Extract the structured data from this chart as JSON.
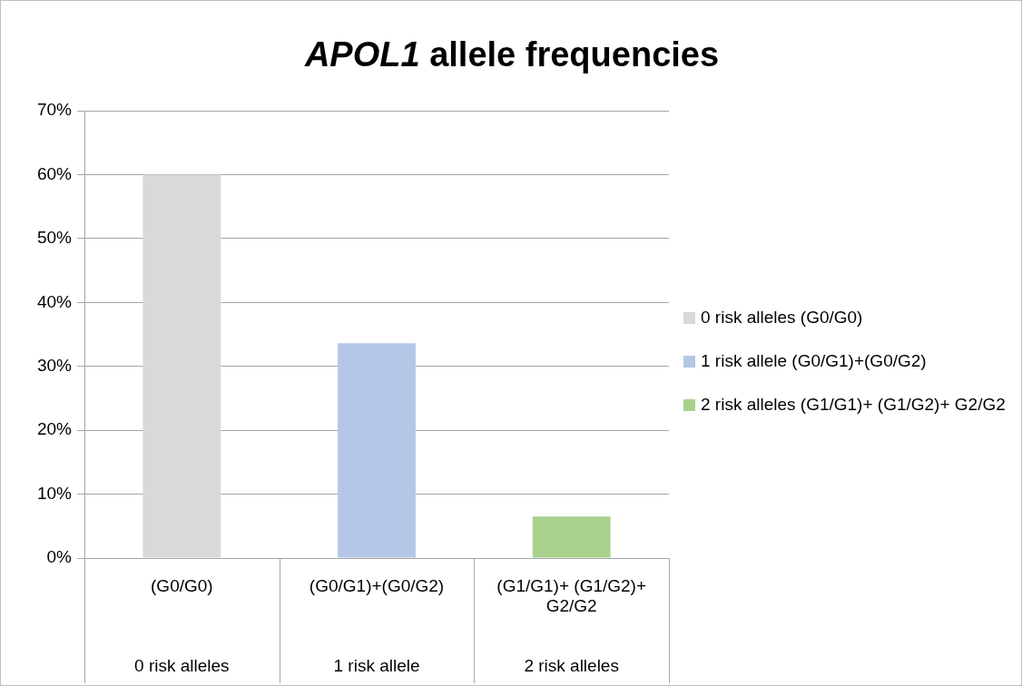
{
  "chart_data": {
    "type": "bar",
    "title": "APOL1 allele frequencies",
    "categories": [
      "(G0/G0)",
      "(G0/G1)+(G0/G2)",
      "(G1/G1)+ (G1/G2)+ G2/G2"
    ],
    "series": [
      {
        "name": "0 risk alleles (G0/G0)",
        "color": "#d9d9d9",
        "values": [
          60,
          null,
          null
        ]
      },
      {
        "name": "1 risk allele (G0/G1)+(G0/G2)",
        "color": "#b4c7e7",
        "values": [
          null,
          33.6,
          null
        ]
      },
      {
        "name": "2 risk alleles (G1/G1)+ (G1/G2)+ G2/G2",
        "color": "#a9d18e",
        "values": [
          null,
          null,
          6.5
        ]
      }
    ],
    "annotations": [
      "0 risk alleles",
      "1 risk allele",
      "2 risk alleles"
    ],
    "ylim": [
      0,
      70
    ],
    "yticks": [
      {
        "value": 0,
        "label": "0%"
      },
      {
        "value": 10,
        "label": "10%"
      },
      {
        "value": 20,
        "label": "20%"
      },
      {
        "value": 30,
        "label": "30%"
      },
      {
        "value": 40,
        "label": "40%"
      },
      {
        "value": 50,
        "label": "50%"
      },
      {
        "value": 60,
        "label": "60%"
      },
      {
        "value": 70,
        "label": "70%"
      }
    ],
    "grid": "y",
    "legend": "right"
  }
}
